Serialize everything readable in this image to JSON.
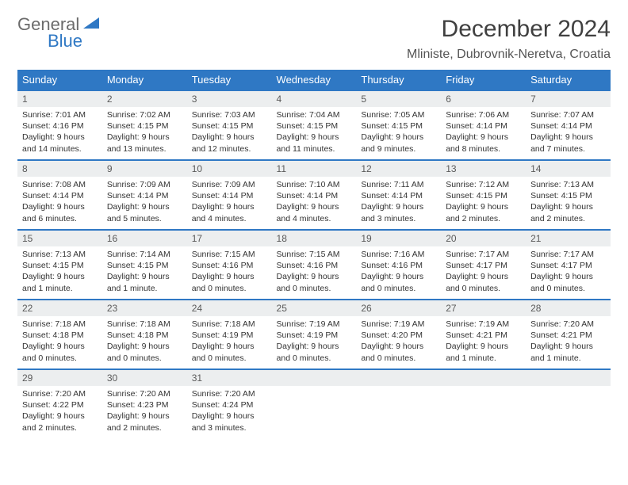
{
  "brand": {
    "name_a": "General",
    "name_b": "Blue"
  },
  "title": "December 2024",
  "location": "Mliniste, Dubrovnik-Neretva, Croatia",
  "colors": {
    "header_bg": "#2f78c4",
    "header_fg": "#ffffff",
    "daynum_bg": "#eceeef",
    "border": "#2f78c4",
    "page_bg": "#ffffff",
    "text": "#333333",
    "logo_gray": "#6b6b6b",
    "logo_blue": "#2f78c4"
  },
  "weekdays": [
    "Sunday",
    "Monday",
    "Tuesday",
    "Wednesday",
    "Thursday",
    "Friday",
    "Saturday"
  ],
  "weeks": [
    [
      {
        "n": "1",
        "sunrise": "7:01 AM",
        "sunset": "4:16 PM",
        "daylight": "9 hours and 14 minutes."
      },
      {
        "n": "2",
        "sunrise": "7:02 AM",
        "sunset": "4:15 PM",
        "daylight": "9 hours and 13 minutes."
      },
      {
        "n": "3",
        "sunrise": "7:03 AM",
        "sunset": "4:15 PM",
        "daylight": "9 hours and 12 minutes."
      },
      {
        "n": "4",
        "sunrise": "7:04 AM",
        "sunset": "4:15 PM",
        "daylight": "9 hours and 11 minutes."
      },
      {
        "n": "5",
        "sunrise": "7:05 AM",
        "sunset": "4:15 PM",
        "daylight": "9 hours and 9 minutes."
      },
      {
        "n": "6",
        "sunrise": "7:06 AM",
        "sunset": "4:14 PM",
        "daylight": "9 hours and 8 minutes."
      },
      {
        "n": "7",
        "sunrise": "7:07 AM",
        "sunset": "4:14 PM",
        "daylight": "9 hours and 7 minutes."
      }
    ],
    [
      {
        "n": "8",
        "sunrise": "7:08 AM",
        "sunset": "4:14 PM",
        "daylight": "9 hours and 6 minutes."
      },
      {
        "n": "9",
        "sunrise": "7:09 AM",
        "sunset": "4:14 PM",
        "daylight": "9 hours and 5 minutes."
      },
      {
        "n": "10",
        "sunrise": "7:09 AM",
        "sunset": "4:14 PM",
        "daylight": "9 hours and 4 minutes."
      },
      {
        "n": "11",
        "sunrise": "7:10 AM",
        "sunset": "4:14 PM",
        "daylight": "9 hours and 4 minutes."
      },
      {
        "n": "12",
        "sunrise": "7:11 AM",
        "sunset": "4:14 PM",
        "daylight": "9 hours and 3 minutes."
      },
      {
        "n": "13",
        "sunrise": "7:12 AM",
        "sunset": "4:15 PM",
        "daylight": "9 hours and 2 minutes."
      },
      {
        "n": "14",
        "sunrise": "7:13 AM",
        "sunset": "4:15 PM",
        "daylight": "9 hours and 2 minutes."
      }
    ],
    [
      {
        "n": "15",
        "sunrise": "7:13 AM",
        "sunset": "4:15 PM",
        "daylight": "9 hours and 1 minute."
      },
      {
        "n": "16",
        "sunrise": "7:14 AM",
        "sunset": "4:15 PM",
        "daylight": "9 hours and 1 minute."
      },
      {
        "n": "17",
        "sunrise": "7:15 AM",
        "sunset": "4:16 PM",
        "daylight": "9 hours and 0 minutes."
      },
      {
        "n": "18",
        "sunrise": "7:15 AM",
        "sunset": "4:16 PM",
        "daylight": "9 hours and 0 minutes."
      },
      {
        "n": "19",
        "sunrise": "7:16 AM",
        "sunset": "4:16 PM",
        "daylight": "9 hours and 0 minutes."
      },
      {
        "n": "20",
        "sunrise": "7:17 AM",
        "sunset": "4:17 PM",
        "daylight": "9 hours and 0 minutes."
      },
      {
        "n": "21",
        "sunrise": "7:17 AM",
        "sunset": "4:17 PM",
        "daylight": "9 hours and 0 minutes."
      }
    ],
    [
      {
        "n": "22",
        "sunrise": "7:18 AM",
        "sunset": "4:18 PM",
        "daylight": "9 hours and 0 minutes."
      },
      {
        "n": "23",
        "sunrise": "7:18 AM",
        "sunset": "4:18 PM",
        "daylight": "9 hours and 0 minutes."
      },
      {
        "n": "24",
        "sunrise": "7:18 AM",
        "sunset": "4:19 PM",
        "daylight": "9 hours and 0 minutes."
      },
      {
        "n": "25",
        "sunrise": "7:19 AM",
        "sunset": "4:19 PM",
        "daylight": "9 hours and 0 minutes."
      },
      {
        "n": "26",
        "sunrise": "7:19 AM",
        "sunset": "4:20 PM",
        "daylight": "9 hours and 0 minutes."
      },
      {
        "n": "27",
        "sunrise": "7:19 AM",
        "sunset": "4:21 PM",
        "daylight": "9 hours and 1 minute."
      },
      {
        "n": "28",
        "sunrise": "7:20 AM",
        "sunset": "4:21 PM",
        "daylight": "9 hours and 1 minute."
      }
    ],
    [
      {
        "n": "29",
        "sunrise": "7:20 AM",
        "sunset": "4:22 PM",
        "daylight": "9 hours and 2 minutes."
      },
      {
        "n": "30",
        "sunrise": "7:20 AM",
        "sunset": "4:23 PM",
        "daylight": "9 hours and 2 minutes."
      },
      {
        "n": "31",
        "sunrise": "7:20 AM",
        "sunset": "4:24 PM",
        "daylight": "9 hours and 3 minutes."
      },
      null,
      null,
      null,
      null
    ]
  ],
  "labels": {
    "sunrise": "Sunrise:",
    "sunset": "Sunset:",
    "daylight": "Daylight:"
  }
}
